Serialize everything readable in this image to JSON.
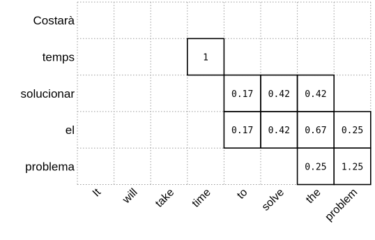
{
  "alignment": {
    "rows": [
      "Costarà",
      "temps",
      "solucionar",
      "el",
      "problema"
    ],
    "columns": [
      "It",
      "will",
      "take",
      "time",
      "to",
      "solve",
      "the",
      "problem"
    ],
    "cells": [
      {
        "row": 1,
        "col": 3,
        "value": "1"
      },
      {
        "row": 2,
        "col": 4,
        "value": "0.17"
      },
      {
        "row": 2,
        "col": 5,
        "value": "0.42"
      },
      {
        "row": 2,
        "col": 6,
        "value": "0.42"
      },
      {
        "row": 3,
        "col": 4,
        "value": "0.17"
      },
      {
        "row": 3,
        "col": 5,
        "value": "0.42"
      },
      {
        "row": 3,
        "col": 6,
        "value": "0.67"
      },
      {
        "row": 3,
        "col": 7,
        "value": "0.25"
      },
      {
        "row": 4,
        "col": 6,
        "value": "0.25"
      },
      {
        "row": 4,
        "col": 7,
        "value": "1.25"
      }
    ]
  }
}
